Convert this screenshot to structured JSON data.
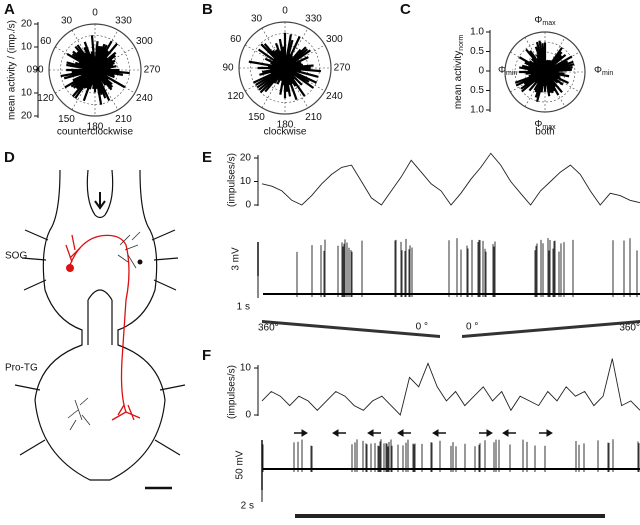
{
  "panels": {
    "A": {
      "letter": "A",
      "angles": [
        "0",
        "330",
        "300",
        "270",
        "240",
        "210",
        "180",
        "150",
        "120",
        "90",
        "60",
        "30"
      ],
      "axis_label": "mean activity / (imp./s)",
      "axis_ticks": [
        "20",
        "10",
        "0",
        "10",
        "20"
      ],
      "caption": "counterclockwise"
    },
    "B": {
      "letter": "B",
      "angles": [
        "0",
        "330",
        "300",
        "270",
        "240",
        "210",
        "180",
        "150",
        "120",
        "90",
        "60",
        "30"
      ],
      "caption": "clockwise"
    },
    "C": {
      "letter": "C",
      "axis_label": {
        "main": "mean activity",
        "sub": "norm"
      },
      "axis_ticks": [
        "1.0",
        "0.5",
        "0",
        "0.5",
        "1.0"
      ],
      "phi_top": {
        "symbol": "Φ",
        "sub": "max"
      },
      "phi_bottom": {
        "symbol": "Φ",
        "sub": "max"
      },
      "phi_left": {
        "symbol": "Φ",
        "sub": "min"
      },
      "phi_right": {
        "symbol": "Φ",
        "sub": "min"
      },
      "caption": "both"
    },
    "D": {
      "letter": "D",
      "region_top": "SOG",
      "region_bottom": "Pro-TG"
    },
    "E": {
      "letter": "E",
      "rate_label": "(impulses/s)",
      "ylim": [
        0,
        20
      ],
      "yticks": [
        0,
        10,
        20
      ],
      "rate": [
        9,
        8,
        6,
        2,
        0,
        4,
        9,
        13,
        16,
        17,
        10,
        3,
        0,
        6,
        12,
        19,
        14,
        9,
        6,
        0,
        5,
        11,
        16,
        22,
        17,
        10,
        5,
        0,
        6,
        10,
        14,
        17,
        13,
        6,
        0,
        5,
        4,
        2,
        1
      ],
      "voltage_scale": "3 mV",
      "time_scale": "1 s",
      "stim_labels": [
        "360°",
        "0 °",
        "0 °",
        "360°"
      ]
    },
    "F": {
      "letter": "F",
      "rate_label": "(impulses/s)",
      "ylim": [
        0,
        10
      ],
      "yticks": [
        0,
        10
      ],
      "rate": [
        3,
        5,
        4,
        2,
        4,
        3,
        1,
        3,
        5,
        4,
        2,
        1,
        3,
        4,
        2,
        0,
        8,
        6,
        11,
        6,
        3,
        5,
        2,
        4,
        6,
        3,
        5,
        1,
        4,
        3,
        2,
        5,
        3,
        6,
        4,
        5,
        2,
        4,
        12,
        2,
        3,
        1
      ],
      "voltage_scale": "50 mV",
      "time_scale": "2 s"
    }
  }
}
